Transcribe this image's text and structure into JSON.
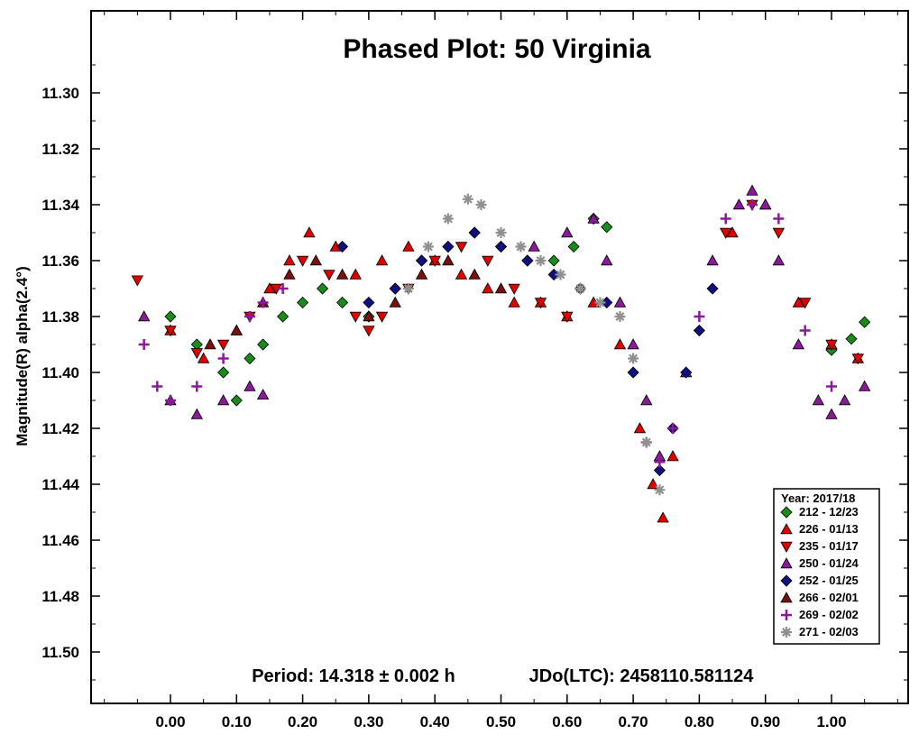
{
  "chart_data": {
    "type": "scatter",
    "title": "Phased Plot: 50 Virginia",
    "ylabel": "Magnitude(R) alpha(2.4°)",
    "xlabel": "",
    "xlim": [
      -0.12,
      1.12
    ],
    "ylim": [
      11.28,
      11.52
    ],
    "y_inverted": true,
    "x_ticks": [
      "0.00",
      "0.10",
      "0.20",
      "0.30",
      "0.40",
      "0.50",
      "0.60",
      "0.70",
      "0.80",
      "0.90",
      "1.00"
    ],
    "y_ticks": [
      "11.30",
      "11.32",
      "11.34",
      "11.36",
      "11.38",
      "11.40",
      "11.42",
      "11.44",
      "11.46",
      "11.48",
      "11.50"
    ],
    "period_text": "Period: 14.318 ± 0.002 h",
    "jd_text": "JDo(LTC): 2458110.581124",
    "legend_title": "Year: 2017/18",
    "legend_placement": "bottom-right",
    "series": [
      {
        "name": "212 - 12/23",
        "marker": "diamond",
        "color": "#1a8a1a",
        "x": [
          0.0,
          0.04,
          0.08,
          0.1,
          0.12,
          0.14,
          0.17,
          0.2,
          0.23,
          0.26,
          0.3,
          0.34,
          0.38,
          0.42,
          0.46,
          0.5,
          0.54,
          0.58,
          0.61,
          0.64,
          0.66,
          1.0,
          1.03,
          1.05
        ],
        "y": [
          11.38,
          11.39,
          11.4,
          11.41,
          11.395,
          11.39,
          11.38,
          11.375,
          11.37,
          11.375,
          11.38,
          11.37,
          11.36,
          11.355,
          11.35,
          11.355,
          11.36,
          11.36,
          11.355,
          11.345,
          11.348,
          11.392,
          11.388,
          11.382
        ]
      },
      {
        "name": "226 - 01/13",
        "marker": "triangle-up",
        "color": "#e00000",
        "x": [
          0.0,
          0.05,
          0.1,
          0.15,
          0.18,
          0.21,
          0.25,
          0.28,
          0.32,
          0.36,
          0.4,
          0.44,
          0.48,
          0.52,
          0.56,
          0.6,
          0.64,
          0.68,
          0.71,
          0.73,
          0.745,
          0.76,
          0.85,
          0.9,
          0.95,
          1.0,
          1.04
        ],
        "y": [
          11.385,
          11.395,
          11.385,
          11.37,
          11.36,
          11.35,
          11.355,
          11.365,
          11.36,
          11.355,
          11.36,
          11.365,
          11.37,
          11.375,
          11.375,
          11.38,
          11.375,
          11.39,
          11.42,
          11.44,
          11.452,
          11.43,
          11.35,
          11.34,
          11.375,
          11.39,
          11.395
        ]
      },
      {
        "name": "235 - 01/17",
        "marker": "triangle-down",
        "color": "#e00000",
        "x": [
          -0.05,
          0.0,
          0.04,
          0.08,
          0.12,
          0.16,
          0.2,
          0.24,
          0.28,
          0.3,
          0.32,
          0.36,
          0.4,
          0.44,
          0.48,
          0.52,
          0.56,
          0.6,
          0.84,
          0.88,
          0.92,
          0.96,
          1.0,
          1.04
        ],
        "y": [
          11.367,
          11.385,
          11.393,
          11.39,
          11.38,
          11.37,
          11.36,
          11.365,
          11.38,
          11.385,
          11.38,
          11.37,
          11.36,
          11.355,
          11.36,
          11.37,
          11.375,
          11.38,
          11.35,
          11.34,
          11.35,
          11.375,
          11.39,
          11.395
        ]
      },
      {
        "name": "250 - 01/24",
        "marker": "triangle-up",
        "color": "#8a1a9a",
        "x": [
          -0.04,
          0.0,
          0.04,
          0.08,
          0.12,
          0.14,
          0.55,
          0.6,
          0.64,
          0.66,
          0.68,
          0.7,
          0.72,
          0.74,
          0.78,
          0.82,
          0.86,
          0.88,
          0.9,
          0.92,
          0.95,
          0.98,
          1.0,
          1.02,
          1.05
        ],
        "y": [
          11.38,
          11.41,
          11.415,
          11.41,
          11.405,
          11.408,
          11.355,
          11.35,
          11.345,
          11.36,
          11.375,
          11.39,
          11.41,
          11.43,
          11.4,
          11.36,
          11.34,
          11.335,
          11.34,
          11.36,
          11.39,
          11.41,
          11.415,
          11.41,
          11.405
        ]
      },
      {
        "name": "252 - 01/25",
        "marker": "diamond",
        "color": "#101080",
        "x": [
          0.26,
          0.3,
          0.34,
          0.38,
          0.42,
          0.46,
          0.5,
          0.54,
          0.58,
          0.62,
          0.66,
          0.7,
          0.74,
          0.76,
          0.78,
          0.8,
          0.82
        ],
        "y": [
          11.355,
          11.375,
          11.37,
          11.36,
          11.355,
          11.35,
          11.355,
          11.36,
          11.365,
          11.37,
          11.375,
          11.4,
          11.435,
          11.42,
          11.4,
          11.385,
          11.37
        ]
      },
      {
        "name": "266 - 02/01",
        "marker": "triangle-up",
        "color": "#7a1010",
        "x": [
          0.06,
          0.1,
          0.14,
          0.18,
          0.22,
          0.26,
          0.3,
          0.34,
          0.38,
          0.42,
          0.46,
          0.5
        ],
        "y": [
          11.39,
          11.385,
          11.375,
          11.365,
          11.36,
          11.365,
          11.38,
          11.375,
          11.365,
          11.36,
          11.365,
          11.37
        ]
      },
      {
        "name": "269 - 02/02",
        "marker": "plus",
        "color": "#8a1a9a",
        "x": [
          -0.04,
          -0.02,
          0.0,
          0.04,
          0.08,
          0.12,
          0.14,
          0.17,
          0.72,
          0.74,
          0.76,
          0.8,
          0.84,
          0.88,
          0.92,
          0.96,
          1.0
        ],
        "y": [
          11.39,
          11.405,
          11.41,
          11.405,
          11.395,
          11.38,
          11.375,
          11.37,
          11.425,
          11.432,
          11.42,
          11.38,
          11.345,
          11.34,
          11.345,
          11.385,
          11.405
        ]
      },
      {
        "name": "271 - 02/03",
        "marker": "asterisk",
        "color": "#909090",
        "x": [
          0.36,
          0.39,
          0.42,
          0.45,
          0.47,
          0.5,
          0.53,
          0.56,
          0.59,
          0.62,
          0.65,
          0.68,
          0.7,
          0.72,
          0.74
        ],
        "y": [
          11.37,
          11.355,
          11.345,
          11.338,
          11.34,
          11.35,
          11.355,
          11.36,
          11.365,
          11.37,
          11.375,
          11.38,
          11.395,
          11.425,
          11.442
        ]
      }
    ]
  }
}
